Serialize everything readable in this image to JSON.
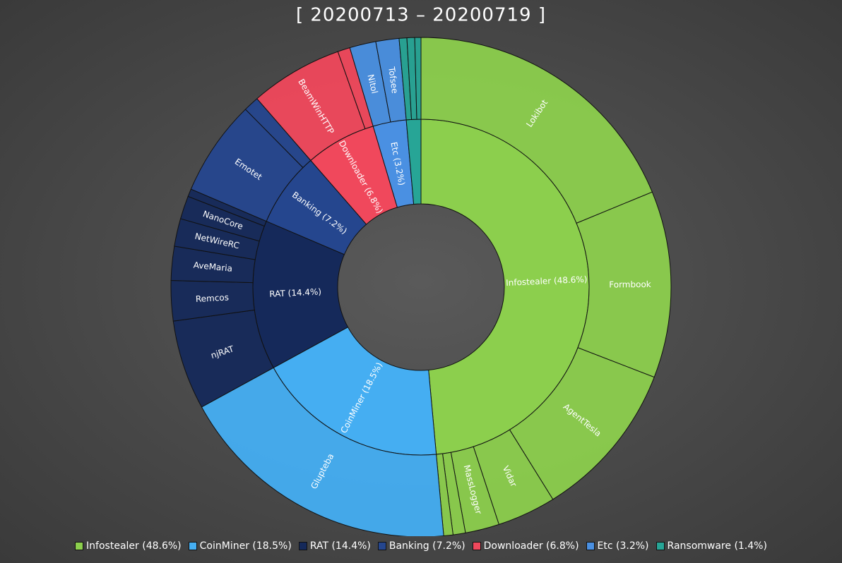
{
  "chart_data": {
    "type": "sunburst",
    "title": "[ 20200713 – 20200719 ]",
    "categories": [
      "Infostealer (48.6%)",
      "CoinMiner (18.5%)",
      "RAT (14.4%)",
      "Banking (7.2%)",
      "Downloader (6.8%)",
      "Etc (3.2%)",
      "Ransomware (1.4%)"
    ],
    "values": [
      48.6,
      18.5,
      14.4,
      7.2,
      6.8,
      3.2,
      1.4
    ],
    "colors": [
      "#8ccf4d",
      "#45aef2",
      "#15295a",
      "#25468e",
      "#f0485c",
      "#4a90e2",
      "#27a596"
    ],
    "children": [
      {
        "categories": [
          "Lokibot",
          "Formbook",
          "AgentTesla",
          "Vidar",
          "MassLogger",
          null,
          null
        ],
        "values": [
          18.8,
          12.1,
          10.3,
          3.8,
          2.2,
          0.8,
          0.6
        ]
      },
      {
        "categories": [
          "Glupteba"
        ],
        "values": [
          18.5
        ]
      },
      {
        "categories": [
          "njRAT",
          "Remcos",
          "AveMaria",
          "NetWireRC",
          "NanoCore",
          null
        ],
        "values": [
          5.8,
          2.6,
          2.2,
          1.8,
          1.5,
          0.5
        ]
      },
      {
        "categories": [
          "Emotet",
          null
        ],
        "values": [
          6.2,
          1.0
        ]
      },
      {
        "categories": [
          "BeamWinHTTP",
          null
        ],
        "values": [
          6.0,
          0.8
        ]
      },
      {
        "categories": [
          "Nitol",
          "Tofsee"
        ],
        "values": [
          1.7,
          1.5
        ]
      },
      {
        "categories": [
          null,
          null,
          null
        ],
        "values": [
          0.5,
          0.5,
          0.4
        ]
      }
    ]
  }
}
